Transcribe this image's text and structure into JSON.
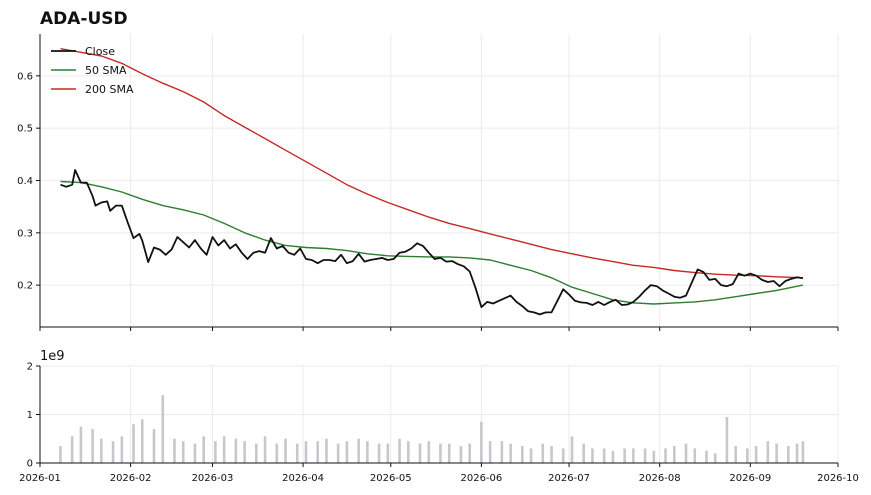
{
  "title": "ADA-USD",
  "colors": {
    "close": "#111111",
    "sma50": "#2e7d32",
    "sma200": "#c62828",
    "volume": "#c8c8cc",
    "grid": "#ebebeb",
    "axis": "#111111"
  },
  "chart_data": [
    {
      "type": "line",
      "title": "ADA-USD",
      "xlabel": "",
      "ylabel": "",
      "x_ticks": [
        "2026-01",
        "2026-02",
        "2026-03",
        "2026-04",
        "2026-05",
        "2026-06",
        "2026-07",
        "2026-08",
        "2026-09",
        "2026-10"
      ],
      "y_ticks": [
        "0.2",
        "0.3",
        "0.4",
        "0.5",
        "0.6"
      ],
      "ylim": [
        0.12,
        0.68
      ],
      "xlim": [
        "2026-01-01",
        "2026-10-01"
      ],
      "grid": true,
      "legend_position": "top-left",
      "legend": [
        "Close",
        "50 SMA",
        "200 SMA"
      ],
      "series": [
        {
          "name": "Close",
          "x": [
            "2026-01-08",
            "2026-01-10",
            "2026-01-12",
            "2026-01-13",
            "2026-01-15",
            "2026-01-17",
            "2026-01-19",
            "2026-01-20",
            "2026-01-22",
            "2026-01-24",
            "2026-01-25",
            "2026-01-27",
            "2026-01-29",
            "2026-01-31",
            "2026-02-02",
            "2026-02-04",
            "2026-02-05",
            "2026-02-07",
            "2026-02-09",
            "2026-02-11",
            "2026-02-13",
            "2026-02-15",
            "2026-02-17",
            "2026-02-19",
            "2026-02-21",
            "2026-02-23",
            "2026-02-25",
            "2026-02-27",
            "2026-03-01",
            "2026-03-03",
            "2026-03-05",
            "2026-03-07",
            "2026-03-09",
            "2026-03-11",
            "2026-03-13",
            "2026-03-15",
            "2026-03-17",
            "2026-03-19",
            "2026-03-21",
            "2026-03-23",
            "2026-03-25",
            "2026-03-27",
            "2026-03-29",
            "2026-03-31",
            "2026-04-02",
            "2026-04-04",
            "2026-04-06",
            "2026-04-08",
            "2026-04-10",
            "2026-04-12",
            "2026-04-14",
            "2026-04-16",
            "2026-04-18",
            "2026-04-20",
            "2026-04-22",
            "2026-04-24",
            "2026-04-26",
            "2026-04-28",
            "2026-04-30",
            "2026-05-02",
            "2026-05-04",
            "2026-05-06",
            "2026-05-08",
            "2026-05-10",
            "2026-05-12",
            "2026-05-14",
            "2026-05-16",
            "2026-05-18",
            "2026-05-20",
            "2026-05-22",
            "2026-05-24",
            "2026-05-26",
            "2026-05-28",
            "2026-05-30",
            "2026-06-01",
            "2026-06-03",
            "2026-06-05",
            "2026-06-07",
            "2026-06-09",
            "2026-06-11",
            "2026-06-13",
            "2026-06-15",
            "2026-06-17",
            "2026-06-19",
            "2026-06-21",
            "2026-06-23",
            "2026-06-25",
            "2026-06-27",
            "2026-06-29",
            "2026-07-01",
            "2026-07-03",
            "2026-07-05",
            "2026-07-07",
            "2026-07-09",
            "2026-07-11",
            "2026-07-13",
            "2026-07-15",
            "2026-07-17",
            "2026-07-19",
            "2026-07-21",
            "2026-07-23",
            "2026-07-25",
            "2026-07-27",
            "2026-07-29",
            "2026-07-31",
            "2026-08-02",
            "2026-08-04",
            "2026-08-06",
            "2026-08-08",
            "2026-08-10",
            "2026-08-12",
            "2026-08-14",
            "2026-08-16",
            "2026-08-18",
            "2026-08-20",
            "2026-08-22",
            "2026-08-24",
            "2026-08-26",
            "2026-08-28",
            "2026-08-30",
            "2026-09-01",
            "2026-09-03",
            "2026-09-05",
            "2026-09-07",
            "2026-09-09",
            "2026-09-11",
            "2026-09-13",
            "2026-09-15",
            "2026-09-17",
            "2026-09-19"
          ],
          "values": [
            0.392,
            0.388,
            0.392,
            0.42,
            0.396,
            0.396,
            0.37,
            0.352,
            0.358,
            0.36,
            0.342,
            0.352,
            0.352,
            0.32,
            0.29,
            0.298,
            0.285,
            0.244,
            0.272,
            0.268,
            0.258,
            0.268,
            0.292,
            0.282,
            0.272,
            0.286,
            0.27,
            0.258,
            0.292,
            0.276,
            0.286,
            0.27,
            0.278,
            0.262,
            0.25,
            0.262,
            0.265,
            0.262,
            0.29,
            0.27,
            0.275,
            0.262,
            0.258,
            0.27,
            0.25,
            0.248,
            0.242,
            0.248,
            0.248,
            0.246,
            0.258,
            0.242,
            0.246,
            0.26,
            0.245,
            0.248,
            0.25,
            0.252,
            0.248,
            0.25,
            0.262,
            0.264,
            0.27,
            0.28,
            0.275,
            0.262,
            0.25,
            0.252,
            0.245,
            0.246,
            0.24,
            0.236,
            0.226,
            0.195,
            0.158,
            0.168,
            0.165,
            0.17,
            0.175,
            0.18,
            0.168,
            0.16,
            0.15,
            0.148,
            0.144,
            0.148,
            0.148,
            0.17,
            0.192,
            0.182,
            0.17,
            0.167,
            0.166,
            0.162,
            0.168,
            0.162,
            0.168,
            0.172,
            0.162,
            0.163,
            0.168,
            0.178,
            0.19,
            0.2,
            0.198,
            0.19,
            0.184,
            0.178,
            0.176,
            0.18,
            0.205,
            0.23,
            0.225,
            0.21,
            0.212,
            0.2,
            0.198,
            0.202,
            0.222,
            0.218,
            0.222,
            0.218,
            0.21,
            0.206,
            0.208,
            0.198,
            0.208,
            0.212,
            0.215,
            0.213
          ]
        },
        {
          "name": "50 SMA",
          "x": [
            "2026-01-08",
            "2026-01-15",
            "2026-01-22",
            "2026-01-29",
            "2026-02-05",
            "2026-02-12",
            "2026-02-19",
            "2026-02-26",
            "2026-03-05",
            "2026-03-12",
            "2026-03-19",
            "2026-03-26",
            "2026-04-02",
            "2026-04-09",
            "2026-04-16",
            "2026-04-23",
            "2026-04-30",
            "2026-05-07",
            "2026-05-14",
            "2026-05-21",
            "2026-05-28",
            "2026-06-04",
            "2026-06-11",
            "2026-06-18",
            "2026-06-25",
            "2026-07-02",
            "2026-07-09",
            "2026-07-16",
            "2026-07-23",
            "2026-07-30",
            "2026-08-06",
            "2026-08-13",
            "2026-08-20",
            "2026-08-27",
            "2026-09-03",
            "2026-09-10",
            "2026-09-19"
          ],
          "values": [
            0.398,
            0.396,
            0.388,
            0.378,
            0.364,
            0.352,
            0.344,
            0.334,
            0.318,
            0.3,
            0.286,
            0.276,
            0.272,
            0.27,
            0.266,
            0.26,
            0.256,
            0.255,
            0.254,
            0.254,
            0.252,
            0.248,
            0.238,
            0.228,
            0.214,
            0.196,
            0.184,
            0.172,
            0.166,
            0.164,
            0.166,
            0.168,
            0.172,
            0.178,
            0.184,
            0.19,
            0.2
          ]
        },
        {
          "name": "200 SMA",
          "x": [
            "2026-01-08",
            "2026-01-15",
            "2026-01-22",
            "2026-01-29",
            "2026-02-05",
            "2026-02-12",
            "2026-02-19",
            "2026-02-26",
            "2026-03-05",
            "2026-03-12",
            "2026-03-19",
            "2026-03-26",
            "2026-04-02",
            "2026-04-09",
            "2026-04-16",
            "2026-04-23",
            "2026-04-30",
            "2026-05-07",
            "2026-05-14",
            "2026-05-21",
            "2026-05-28",
            "2026-06-04",
            "2026-06-11",
            "2026-06-18",
            "2026-06-25",
            "2026-07-02",
            "2026-07-09",
            "2026-07-16",
            "2026-07-23",
            "2026-07-30",
            "2026-08-06",
            "2026-08-13",
            "2026-08-20",
            "2026-08-27",
            "2026-09-03",
            "2026-09-10",
            "2026-09-19"
          ],
          "values": [
            0.652,
            0.645,
            0.638,
            0.624,
            0.604,
            0.586,
            0.57,
            0.55,
            0.524,
            0.502,
            0.48,
            0.458,
            0.436,
            0.414,
            0.392,
            0.374,
            0.358,
            0.344,
            0.33,
            0.318,
            0.308,
            0.298,
            0.288,
            0.278,
            0.268,
            0.26,
            0.252,
            0.245,
            0.238,
            0.234,
            0.228,
            0.224,
            0.221,
            0.219,
            0.218,
            0.216,
            0.214
          ]
        }
      ]
    },
    {
      "type": "bar",
      "title": "",
      "xlabel": "",
      "ylabel": "",
      "multiplier": "1e9",
      "y_ticks": [
        "0",
        "1",
        "2"
      ],
      "ylim": [
        0,
        2
      ],
      "grid": true,
      "series": [
        {
          "name": "",
          "x": [
            "2026-01-08",
            "2026-01-12",
            "2026-01-15",
            "2026-01-19",
            "2026-01-22",
            "2026-01-26",
            "2026-01-29",
            "2026-02-02",
            "2026-02-05",
            "2026-02-09",
            "2026-02-12",
            "2026-02-16",
            "2026-02-19",
            "2026-02-23",
            "2026-02-26",
            "2026-03-02",
            "2026-03-05",
            "2026-03-09",
            "2026-03-12",
            "2026-03-16",
            "2026-03-19",
            "2026-03-23",
            "2026-03-26",
            "2026-03-30",
            "2026-04-02",
            "2026-04-06",
            "2026-04-09",
            "2026-04-13",
            "2026-04-16",
            "2026-04-20",
            "2026-04-23",
            "2026-04-27",
            "2026-04-30",
            "2026-05-04",
            "2026-05-07",
            "2026-05-11",
            "2026-05-14",
            "2026-05-18",
            "2026-05-21",
            "2026-05-25",
            "2026-05-28",
            "2026-06-01",
            "2026-06-04",
            "2026-06-08",
            "2026-06-11",
            "2026-06-15",
            "2026-06-18",
            "2026-06-22",
            "2026-06-25",
            "2026-06-29",
            "2026-07-02",
            "2026-07-06",
            "2026-07-09",
            "2026-07-13",
            "2026-07-16",
            "2026-07-20",
            "2026-07-23",
            "2026-07-27",
            "2026-07-30",
            "2026-08-03",
            "2026-08-06",
            "2026-08-10",
            "2026-08-13",
            "2026-08-17",
            "2026-08-20",
            "2026-08-24",
            "2026-08-27",
            "2026-08-31",
            "2026-09-03",
            "2026-09-07",
            "2026-09-10",
            "2026-09-14",
            "2026-09-17",
            "2026-09-19"
          ],
          "values": [
            0.35,
            0.55,
            0.75,
            0.7,
            0.5,
            0.45,
            0.55,
            0.8,
            0.9,
            0.7,
            1.4,
            0.5,
            0.45,
            0.4,
            0.55,
            0.45,
            0.55,
            0.5,
            0.45,
            0.4,
            0.55,
            0.4,
            0.5,
            0.4,
            0.45,
            0.45,
            0.5,
            0.4,
            0.45,
            0.5,
            0.45,
            0.4,
            0.4,
            0.5,
            0.45,
            0.4,
            0.45,
            0.4,
            0.4,
            0.35,
            0.4,
            0.85,
            0.45,
            0.45,
            0.4,
            0.35,
            0.3,
            0.4,
            0.35,
            0.3,
            0.55,
            0.4,
            0.3,
            0.3,
            0.25,
            0.3,
            0.3,
            0.3,
            0.25,
            0.3,
            0.35,
            0.4,
            0.3,
            0.25,
            0.2,
            0.95,
            0.35,
            0.3,
            0.35,
            0.45,
            0.4,
            0.35,
            0.4,
            0.45
          ]
        }
      ]
    }
  ]
}
